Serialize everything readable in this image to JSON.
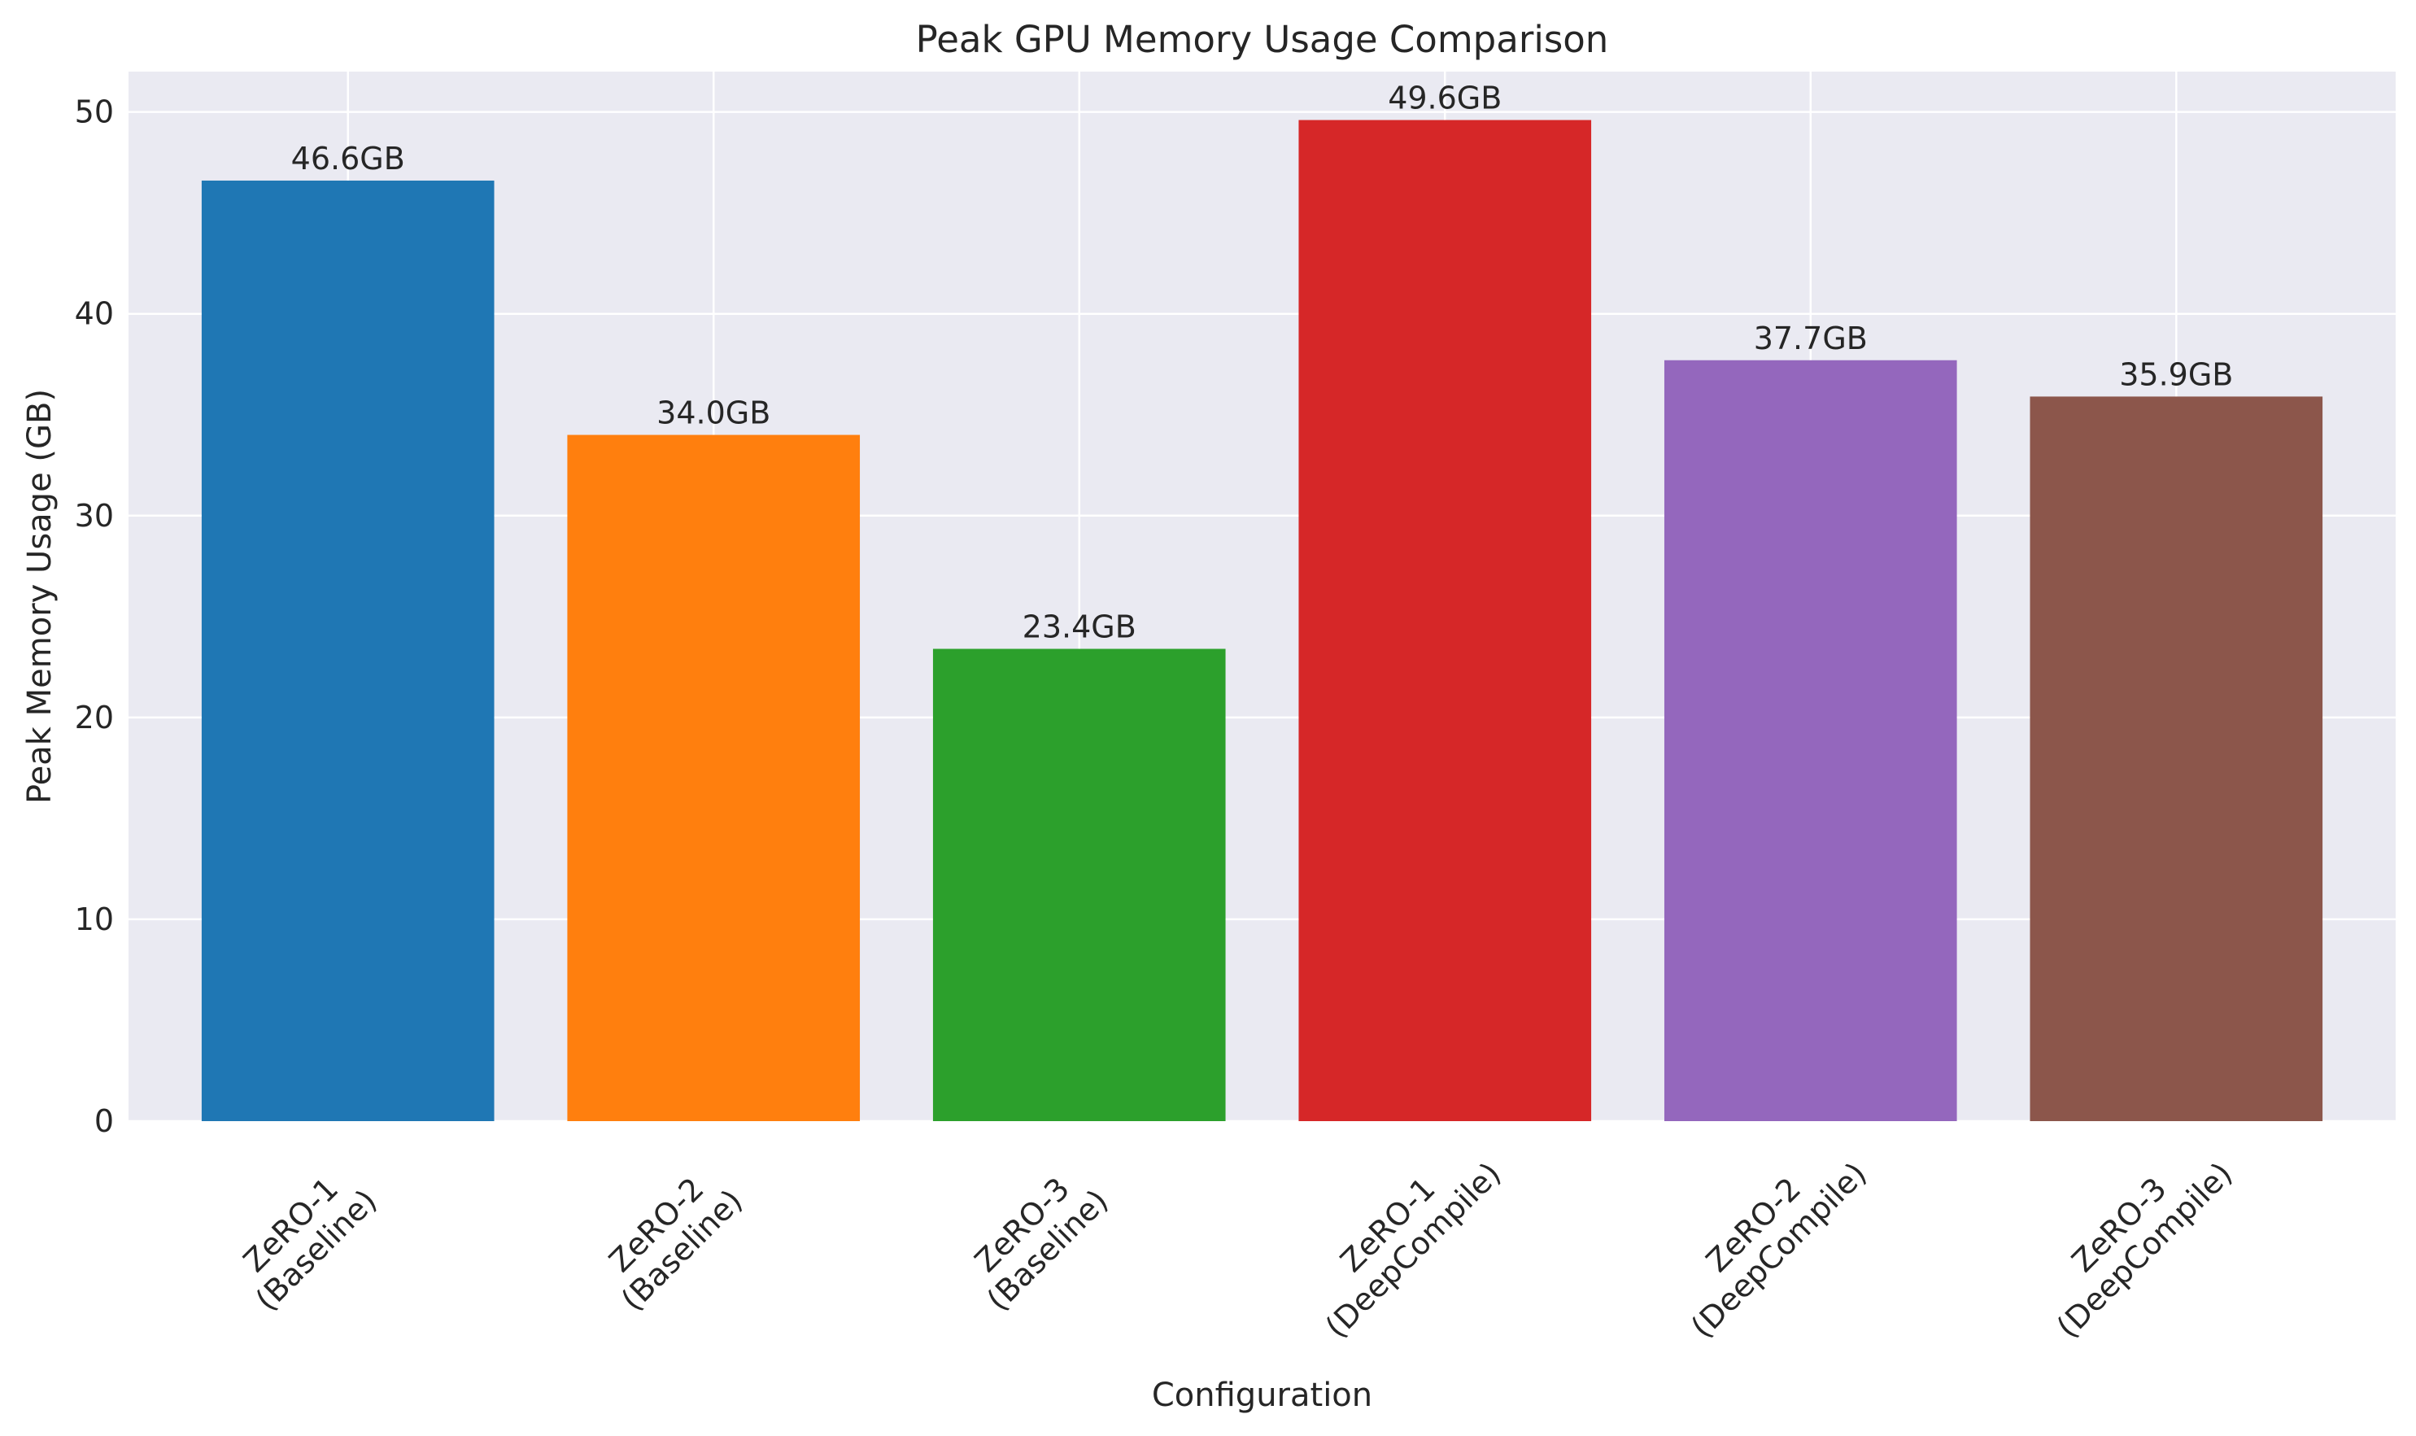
{
  "chart_data": {
    "type": "bar",
    "title": "Peak GPU Memory Usage Comparison",
    "xlabel": "Configuration",
    "ylabel": "Peak Memory Usage (GB)",
    "ylim": [
      0,
      52
    ],
    "yticks": [
      0,
      10,
      20,
      30,
      40,
      50
    ],
    "grid": true,
    "legend": "none",
    "background_color": "#eaeaf2",
    "grid_color": "#ffffff",
    "categories": [
      [
        "ZeRO-1",
        "(Baseline)"
      ],
      [
        "ZeRO-2",
        "(Baseline)"
      ],
      [
        "ZeRO-3",
        "(Baseline)"
      ],
      [
        "ZeRO-1",
        "(DeepCompile)"
      ],
      [
        "ZeRO-2",
        "(DeepCompile)"
      ],
      [
        "ZeRO-3",
        "(DeepCompile)"
      ]
    ],
    "values": [
      46.6,
      34.0,
      23.4,
      49.6,
      37.7,
      35.9
    ],
    "data_labels": [
      "46.6GB",
      "34.0GB",
      "23.4GB",
      "49.6GB",
      "37.7GB",
      "35.9GB"
    ],
    "colors": [
      "#1f77b4",
      "#ff7f0e",
      "#2ca02c",
      "#d62728",
      "#9467bd",
      "#8c564b"
    ]
  }
}
